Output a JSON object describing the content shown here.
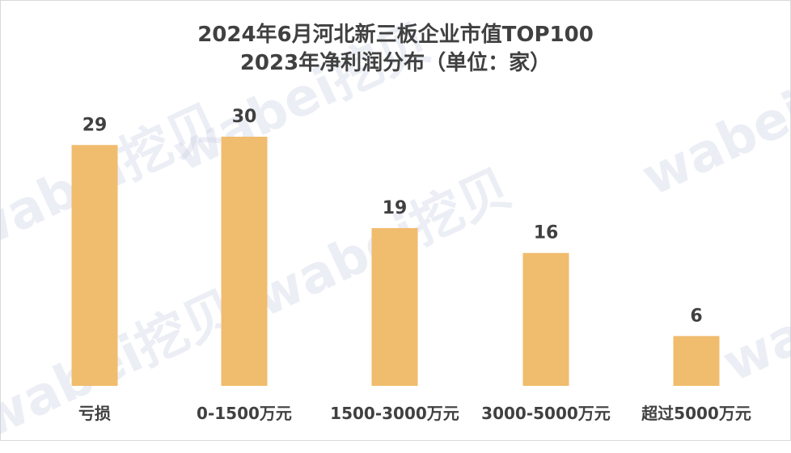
{
  "chart_data": {
    "type": "bar",
    "title": "2024年6月河北新三板企业市值TOP100",
    "subtitle": "2023年净利润分布（单位：家）",
    "categories": [
      "亏损",
      "0-1500万元",
      "1500-3000万元",
      "3000-5000万元",
      "超过5000万元"
    ],
    "values": [
      29,
      30,
      19,
      16,
      6
    ],
    "xlabel": "",
    "ylabel": "",
    "grid": false,
    "legend": "none",
    "bar_color": "#f0bc6e"
  },
  "watermark": "wabei挖贝"
}
